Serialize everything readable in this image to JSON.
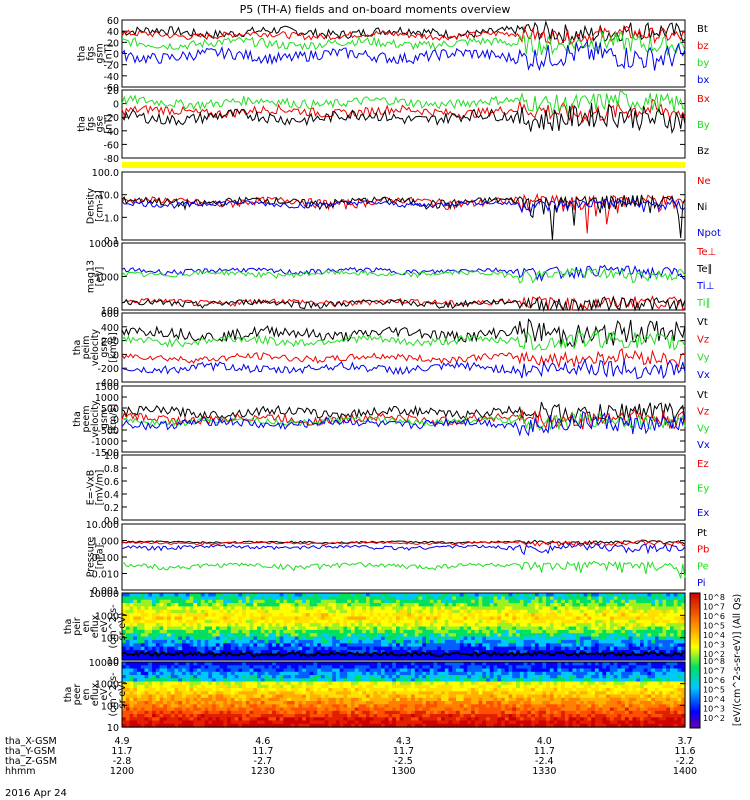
{
  "chart_data": {
    "type": "line",
    "title": "P5 (TH-A) fields and on-board moments overview",
    "date": "2016 Apr 24",
    "colors": {
      "black": "#000000",
      "red": "#ee0000",
      "green": "#22dd22",
      "blue": "#0000ee",
      "yellow": "#ffff00"
    },
    "panels": [
      {
        "id": "fgs-gsm",
        "ylabel": [
          "tha",
          "fgs",
          "gsm",
          "[nT]"
        ],
        "yticks": [
          "60",
          "40",
          "20",
          "0",
          "-20",
          "-40",
          "-60"
        ],
        "ylim": [
          -60,
          60
        ],
        "series": [
          {
            "name": "Bt",
            "color": "#000000",
            "base": 38,
            "amp": 8
          },
          {
            "name": "bz",
            "color": "#ee0000",
            "base": 33,
            "amp": 6
          },
          {
            "name": "by",
            "color": "#22dd22",
            "base": 18,
            "amp": 8
          },
          {
            "name": "bx",
            "color": "#0000ee",
            "base": -4,
            "amp": 10
          }
        ]
      },
      {
        "id": "fgs-gse",
        "ylabel": [
          "tha",
          "fgs",
          "gse",
          "[nT]"
        ],
        "yticks": [
          "20",
          "0",
          "-20",
          "-40",
          "-60",
          "-80"
        ],
        "ylim": [
          -90,
          30
        ],
        "series": [
          {
            "name": "Bx",
            "color": "#ee0000",
            "base": -8,
            "amp": 8
          },
          {
            "name": "By",
            "color": "#22dd22",
            "base": 8,
            "amp": 8
          },
          {
            "name": "Bz",
            "color": "#000000",
            "base": -18,
            "amp": 10
          }
        ]
      },
      {
        "id": "flag",
        "ylabel": [],
        "yticks": [],
        "ylim": [
          0,
          1
        ],
        "series": []
      },
      {
        "id": "density",
        "ylabel": [
          "Density",
          "[cm-3]"
        ],
        "yticks": [
          "100.0",
          "10.0",
          "1.0",
          "0.1"
        ],
        "ylim": [
          0.1,
          100
        ],
        "series": [
          {
            "name": "Ne",
            "color": "#ee0000",
            "base": 5,
            "amp": 2
          },
          {
            "name": "Ni",
            "color": "#000000",
            "base": 5,
            "amp": 2
          },
          {
            "name": "Npot",
            "color": "#0000ee",
            "base": 4,
            "amp": 1
          }
        ]
      },
      {
        "id": "temperature",
        "ylabel": [
          "mag13",
          "[eV]"
        ],
        "yticks": [
          "10000",
          "1000",
          "100"
        ],
        "ylim": [
          30,
          10000
        ],
        "series": [
          {
            "name": "Te⊥",
            "color": "#ee0000",
            "base": 60,
            "amp": 15
          },
          {
            "name": "Te∥",
            "color": "#000000",
            "base": 55,
            "amp": 15
          },
          {
            "name": "Ti⊥",
            "color": "#0000ee",
            "base": 900,
            "amp": 200
          },
          {
            "name": "Ti∥",
            "color": "#22dd22",
            "base": 700,
            "amp": 150
          }
        ]
      },
      {
        "id": "ion-velocity",
        "ylabel": [
          "tha",
          "peim",
          "velocity",
          "gsm",
          "[km/s]"
        ],
        "yticks": [
          "600",
          "400",
          "200",
          "0",
          "-200",
          "-400"
        ],
        "ylim": [
          -400,
          600
        ],
        "series": [
          {
            "name": "Vt",
            "color": "#000000",
            "base": 300,
            "amp": 80
          },
          {
            "name": "Vz",
            "color": "#ee0000",
            "base": -50,
            "amp": 50
          },
          {
            "name": "Vy",
            "color": "#22dd22",
            "base": 200,
            "amp": 60
          },
          {
            "name": "Vx",
            "color": "#0000ee",
            "base": -200,
            "amp": 60
          }
        ]
      },
      {
        "id": "electron-velocity",
        "ylabel": [
          "tha",
          "peem",
          "velocity",
          "gsm",
          "[km/s]"
        ],
        "yticks": [
          "1500",
          "1000",
          "500",
          "0",
          "-500",
          "-1000",
          "-1500"
        ],
        "ylim": [
          -1500,
          1500
        ],
        "series": [
          {
            "name": "Vt",
            "color": "#000000",
            "base": 300,
            "amp": 200
          },
          {
            "name": "Vz",
            "color": "#ee0000",
            "base": 0,
            "amp": 200
          },
          {
            "name": "Vy",
            "color": "#22dd22",
            "base": -100,
            "amp": 150
          },
          {
            "name": "Vx",
            "color": "#0000ee",
            "base": -200,
            "amp": 200
          }
        ]
      },
      {
        "id": "efield",
        "ylabel": [
          "E=-VxB",
          "[mV/m]"
        ],
        "yticks": [
          "1.0",
          "0.8",
          "0.6",
          "0.4",
          "0.2",
          "0.0"
        ],
        "ylim": [
          0,
          1
        ],
        "series": [
          {
            "name": "Ez",
            "color": "#ee0000",
            "base": null,
            "amp": 0
          },
          {
            "name": "Ey",
            "color": "#22dd22",
            "base": null,
            "amp": 0
          },
          {
            "name": "Ex",
            "color": "#0000ee",
            "base": null,
            "amp": 0
          }
        ]
      },
      {
        "id": "pressure",
        "ylabel": [
          "Pressure",
          "[nPa]"
        ],
        "yticks": [
          "10.000",
          "1.000",
          "0.100",
          "0.010",
          "0.001"
        ],
        "ylim": [
          0.001,
          10
        ],
        "series": [
          {
            "name": "Pt",
            "color": "#000000",
            "base": 0.8,
            "amp": 0.1
          },
          {
            "name": "Pb",
            "color": "#ee0000",
            "base": 0.7,
            "amp": 0.1
          },
          {
            "name": "Pe",
            "color": "#22dd22",
            "base": 0.03,
            "amp": 0.01
          },
          {
            "name": "Pi",
            "color": "#0000ee",
            "base": 0.4,
            "amp": 0.1
          }
        ]
      },
      {
        "id": "ion-spectrogram",
        "ylabel": [
          "tha",
          "peir",
          "en",
          "eflux",
          "eV",
          "(cm^2-s-",
          "sr-eV)"
        ],
        "yticks": [
          "10000",
          "1000",
          "100",
          "10"
        ],
        "ylim": [
          10,
          20000
        ],
        "series": []
      },
      {
        "id": "electron-spectrogram",
        "ylabel": [
          "tha",
          "peer",
          "en",
          "eflux",
          "eV",
          "(cm^2-s-",
          "sr-eV)"
        ],
        "yticks": [
          "10000",
          "1000",
          "100",
          "10"
        ],
        "ylim": [
          10,
          20000
        ],
        "series": []
      }
    ],
    "colorbar": {
      "label": "[eV/(cm^2-s-sr-eV)] (All Qs)",
      "ticks_top": [
        "10^8",
        "10^7",
        "10^6",
        "10^5",
        "10^4",
        "10^3",
        "10^2"
      ],
      "ticks_bottom": [
        "10^8",
        "10^7",
        "10^6",
        "10^5",
        "10^4",
        "10^3",
        "10^2"
      ]
    },
    "xaxis": {
      "rows": [
        {
          "label": "tha_X-GSM",
          "values": [
            "4.9",
            "4.6",
            "4.3",
            "4.0",
            "3.7"
          ]
        },
        {
          "label": "tha_Y-GSM",
          "values": [
            "11.7",
            "11.7",
            "11.7",
            "11.7",
            "11.6"
          ]
        },
        {
          "label": "tha_Z-GSM",
          "values": [
            "-2.8",
            "-2.7",
            "-2.5",
            "-2.4",
            "-2.2"
          ]
        },
        {
          "label": "hhmm",
          "values": [
            "1200",
            "1230",
            "1300",
            "1330",
            "1400"
          ]
        }
      ]
    }
  }
}
